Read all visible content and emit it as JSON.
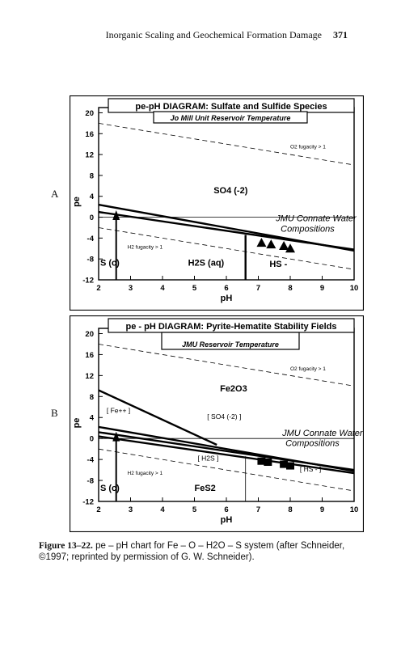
{
  "header": {
    "running_title": "Inorganic Scaling and Geochemical Formation Damage",
    "page_number": "371"
  },
  "panel_letters": [
    "A",
    "B"
  ],
  "chart_data": [
    {
      "type": "line",
      "panel": "A",
      "title": "pe-pH DIAGRAM:  Sulfate and Sulfide Species",
      "subtitle": "Jo Mill Unit Reservoir Temperature",
      "xlabel": "pH",
      "ylabel": "pe",
      "xlim": [
        2,
        10
      ],
      "ylim": [
        -12,
        21
      ],
      "xticks": [
        2,
        3,
        4,
        5,
        6,
        7,
        8,
        9,
        10
      ],
      "yticks": [
        -12,
        -8,
        -4,
        0,
        4,
        8,
        12,
        16,
        20
      ],
      "series": [
        {
          "style": "dashed",
          "x": [
            2,
            10
          ],
          "y": [
            18.0,
            10.0
          ]
        },
        {
          "style": "dashed",
          "x": [
            2,
            10
          ],
          "y": [
            -2.0,
            -10.0
          ]
        },
        {
          "style": "thick",
          "x": [
            2,
            10
          ],
          "y": [
            2.4,
            -6.4
          ]
        },
        {
          "style": "thick",
          "x": [
            2,
            10
          ],
          "y": [
            1.0,
            -6.2
          ]
        },
        {
          "style": "thick",
          "x": [
            6.6,
            6.6
          ],
          "y": [
            -12,
            -3.4
          ]
        },
        {
          "style": "thin",
          "x": [
            2,
            10
          ],
          "y": [
            0,
            0
          ]
        },
        {
          "style": "arrow",
          "x": [
            2.55,
            2.55
          ],
          "y": [
            -12,
            0.4
          ]
        }
      ],
      "points": {
        "marker": "triangle",
        "x": [
          7.1,
          7.4,
          7.8,
          8.0
        ],
        "y": [
          -4.9,
          -5.2,
          -5.5,
          -6.0
        ]
      },
      "annotations": [
        {
          "text": "O2 fugacity  >  1",
          "x": 8.0,
          "y": 13.2
        },
        {
          "text": "SO4  (-2)",
          "x": 5.6,
          "y": 4.6
        },
        {
          "text": "JMU Connate Water",
          "x": 7.55,
          "y": -0.8
        },
        {
          "text": "Compositions",
          "x": 7.7,
          "y": -2.8
        },
        {
          "text": "H2 fugacity  >  1",
          "x": 2.9,
          "y": -6.0
        },
        {
          "text": "S  (c)",
          "x": 2.05,
          "y": -9.3
        },
        {
          "text": "H2S  (aq)",
          "x": 4.8,
          "y": -9.3
        },
        {
          "text": "HS -",
          "x": 7.35,
          "y": -9.5
        }
      ]
    },
    {
      "type": "line",
      "panel": "B",
      "title": "pe - pH DIAGRAM:  Pyrite-Hematite Stability Fields",
      "subtitle": "JMU Reservoir Temperature",
      "xlabel": "pH",
      "ylabel": "pe",
      "xlim": [
        2,
        10
      ],
      "ylim": [
        -12,
        21
      ],
      "xticks": [
        2,
        3,
        4,
        5,
        6,
        7,
        8,
        9,
        10
      ],
      "yticks": [
        -12,
        -8,
        -4,
        0,
        4,
        8,
        12,
        16,
        20
      ],
      "series": [
        {
          "style": "dashed",
          "x": [
            2,
            10
          ],
          "y": [
            18.0,
            10.0
          ]
        },
        {
          "style": "dashed",
          "x": [
            2,
            10
          ],
          "y": [
            -2.0,
            -10.0
          ]
        },
        {
          "style": "thick",
          "x": [
            2,
            5.7
          ],
          "y": [
            9.2,
            -1.2
          ]
        },
        {
          "style": "thick",
          "x": [
            2,
            10
          ],
          "y": [
            2.2,
            -6.2
          ]
        },
        {
          "style": "thick",
          "x": [
            2,
            10
          ],
          "y": [
            1.2,
            -6.0
          ]
        },
        {
          "style": "thick",
          "x": [
            2,
            10
          ],
          "y": [
            0.4,
            -6.6
          ]
        },
        {
          "style": "thin",
          "x": [
            2,
            10
          ],
          "y": [
            0,
            0
          ]
        },
        {
          "style": "thin",
          "x": [
            6.6,
            6.6
          ],
          "y": [
            -12,
            -3.4
          ]
        },
        {
          "style": "arrow",
          "x": [
            2.55,
            2.55
          ],
          "y": [
            -12,
            0.4
          ]
        }
      ],
      "points": {
        "marker": "square",
        "x": [
          7.1,
          7.3,
          7.8,
          8.0
        ],
        "y": [
          -4.4,
          -4.6,
          -5.0,
          -5.3
        ]
      },
      "annotations": [
        {
          "text": "O2 fugacity  >  1",
          "x": 8.0,
          "y": 13.0
        },
        {
          "text": "Fe2O3",
          "x": 5.8,
          "y": 9.0
        },
        {
          "text": "[ Fe++ ]",
          "x": 2.25,
          "y": 4.9
        },
        {
          "text": "[ SO4 (-2) ]",
          "x": 5.4,
          "y": 3.7
        },
        {
          "text": "JMU Connate Water",
          "x": 7.75,
          "y": 0.5
        },
        {
          "text": "Compositions",
          "x": 7.85,
          "y": -1.4
        },
        {
          "text": "[ H2S ]",
          "x": 5.1,
          "y": -4.2
        },
        {
          "text": "[ HS - ]",
          "x": 8.3,
          "y": -6.3
        },
        {
          "text": "H2 fugacity  >  1",
          "x": 2.9,
          "y": -6.9
        },
        {
          "text": "S  (c)",
          "x": 2.05,
          "y": -10.0
        },
        {
          "text": "FeS2",
          "x": 5.0,
          "y": -10.0
        }
      ]
    }
  ],
  "caption": {
    "label": "Figure 13–22.",
    "text": "pe – pH chart for Fe – O – H2O – S system (after Schneider, ©1997; reprinted by permission of G. W. Schneider)."
  }
}
